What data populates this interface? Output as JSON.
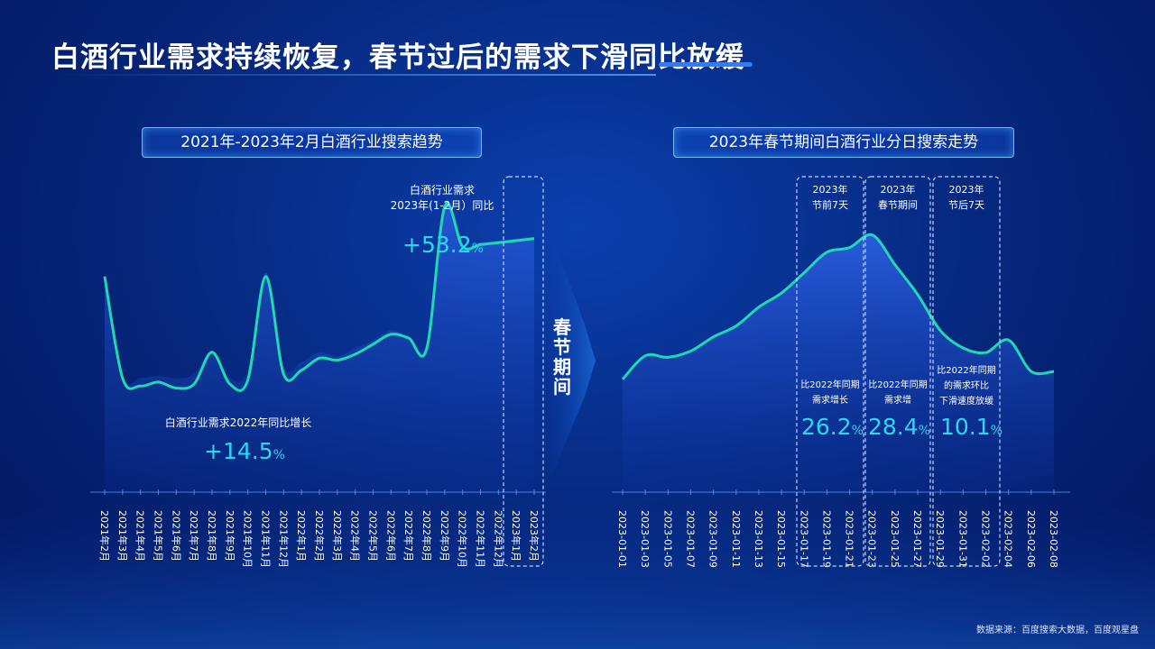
{
  "title": "白酒行业需求持续恢复，春节过后的需求下滑同比放缓",
  "left_panel": {
    "heading": "2021年-2023年2月白酒行业搜索趋势",
    "note_2023": [
      "白酒行业需求",
      "2023年(1-2月）同比"
    ],
    "value_2023": "+53.2",
    "note_2022": "白酒行业需求2022年同比增长",
    "value_2022": "+14.5",
    "pct": "%"
  },
  "separator_label": "春节期间",
  "right_panel": {
    "heading": "2023年春节期间白酒行业分日搜索走势",
    "boxes": [
      {
        "title": [
          "2023年",
          "节前7天"
        ],
        "note": [
          "比2022年同期",
          "需求增长"
        ],
        "value": "26.2"
      },
      {
        "title": [
          "2023年",
          "春节期间"
        ],
        "note": [
          "比2022年同期",
          "需求增"
        ],
        "value": "28.4"
      },
      {
        "title": [
          "2023年",
          "节后7天"
        ],
        "note": [
          "比2022年同期",
          "的需求环比",
          "下滑速度放缓"
        ],
        "value": "10.1"
      }
    ],
    "pct": "%"
  },
  "source": "数据来源：百度搜索大数据，百度观星盘",
  "chart_data": [
    {
      "type": "line",
      "categories": [
        "2021年2月",
        "2021年3月",
        "2021年4月",
        "2021年5月",
        "2021年6月",
        "2021年7月",
        "2021年8月",
        "2021年9月",
        "2021年10月",
        "2021年11月",
        "2021年12月",
        "2022年1月",
        "2022年2月",
        "2022年3月",
        "2022年4月",
        "2022年5月",
        "2022年6月",
        "2022年7月",
        "2022年8月",
        "2022年9月",
        "2022年10月",
        "2022年11月",
        "2022年12月",
        "2023年1月",
        "2023年2月"
      ],
      "series": [
        {
          "values": [
            0.63,
            0.12,
            0.08,
            0.1,
            0.07,
            0.09,
            0.25,
            0.09,
            0.11,
            0.63,
            0.14,
            0.16,
            0.22,
            0.21,
            0.24,
            0.29,
            0.34,
            0.32,
            0.27,
            0.98,
            0.78,
            0.79,
            0.8,
            0.81,
            0.82
          ]
        },
        {
          "values": [
            0.63,
            0.13,
            0.12,
            0.13,
            0.12,
            0.14,
            0.26,
            0.12,
            0.16,
            0.65,
            0.18,
            0.2,
            0.25,
            0.23,
            0.27,
            0.31,
            0.36,
            0.33,
            0.3,
            1.0,
            0.79,
            0.8,
            0.81,
            0.82,
            0.83
          ]
        }
      ],
      "ylim": [
        0,
        1
      ]
    },
    {
      "type": "area",
      "x": [
        "2023-01-01",
        "2023-01-03",
        "2023-01-05",
        "2023-01-07",
        "2023-01-09",
        "2023-01-11",
        "2023-01-13",
        "2023-01-15",
        "2023-01-17",
        "2023-01-19",
        "2023-01-21",
        "2023-01-23",
        "2023-01-25",
        "2023-01-27",
        "2023-01-29",
        "2023-01-31",
        "2023-02-02",
        "2023-02-04",
        "2023-02-06",
        "2023-02-08"
      ],
      "series": [
        {
          "values": [
            0.03,
            0.18,
            0.17,
            0.21,
            0.3,
            0.37,
            0.49,
            0.58,
            0.71,
            0.84,
            0.87,
            0.95,
            0.76,
            0.57,
            0.34,
            0.23,
            0.2,
            0.28,
            0.08,
            0.08
          ]
        }
      ],
      "ylim": [
        0,
        1
      ]
    }
  ]
}
